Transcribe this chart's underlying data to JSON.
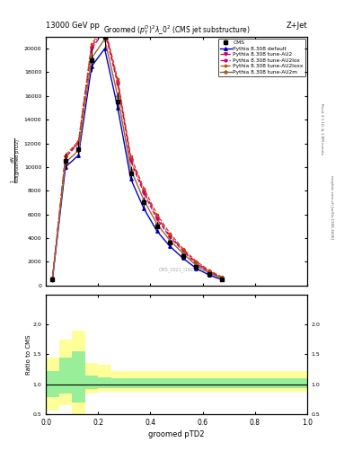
{
  "title": "Groomed $(p_T^D)^2\\lambda\\_0^2$ (CMS jet substructure)",
  "top_left_label": "13000 GeV pp",
  "top_right_label": "Z+Jet",
  "right_label1": "Rivet 3.1.10, ≥ 1.8M events",
  "right_label2": "mcplots.cern.ch [arXiv:1306.3436]",
  "watermark": "CMS_2021_I1925023",
  "xlabel": "groomed pTD2",
  "xlim": [
    0.0,
    1.0
  ],
  "ylim_main": [
    0,
    21000
  ],
  "ylim_ratio": [
    0.5,
    2.5
  ],
  "x_cms": [
    0.025,
    0.075,
    0.125,
    0.175,
    0.225,
    0.275,
    0.325,
    0.375,
    0.425,
    0.475,
    0.525,
    0.575,
    0.625,
    0.675
  ],
  "y_cms": [
    500,
    10500,
    11500,
    19000,
    21000,
    15500,
    9500,
    7000,
    5000,
    3600,
    2500,
    1600,
    950,
    500
  ],
  "cms_err": [
    200,
    700,
    700,
    1000,
    1000,
    800,
    600,
    500,
    380,
    280,
    200,
    130,
    80,
    50
  ],
  "x_pts": [
    0.025,
    0.075,
    0.125,
    0.175,
    0.225,
    0.275,
    0.325,
    0.375,
    0.425,
    0.475,
    0.525,
    0.575,
    0.625,
    0.675
  ],
  "y_default": [
    500,
    10000,
    11000,
    18500,
    20000,
    15000,
    9000,
    6500,
    4600,
    3300,
    2300,
    1450,
    880,
    480
  ],
  "y_au2": [
    550,
    10800,
    12000,
    20000,
    21500,
    17000,
    10500,
    7800,
    5600,
    4100,
    2900,
    1850,
    1150,
    620
  ],
  "y_au2lox": [
    560,
    10900,
    12100,
    20200,
    21700,
    17200,
    10700,
    8000,
    5800,
    4200,
    3000,
    1950,
    1200,
    650
  ],
  "y_au2loxx": [
    570,
    11000,
    12200,
    20400,
    21900,
    17400,
    10900,
    8200,
    6000,
    4400,
    3100,
    2050,
    1280,
    700
  ],
  "y_au2m": [
    520,
    10400,
    11400,
    19200,
    20800,
    16000,
    9800,
    7200,
    5200,
    3800,
    2700,
    1700,
    1050,
    570
  ],
  "color_default": "#0000cc",
  "color_au2": "#cc0066",
  "color_au2lox": "#cc0066",
  "color_au2loxx": "#cc4400",
  "color_au2m": "#996633",
  "bin_edges": [
    0.0,
    0.05,
    0.1,
    0.15,
    0.2,
    0.25,
    0.3,
    0.35,
    0.4,
    0.45,
    0.5,
    0.55,
    0.6,
    0.65,
    0.7,
    1.0
  ],
  "yellow_lo": [
    0.55,
    0.65,
    0.45,
    0.85,
    0.88,
    0.88,
    0.88,
    0.88,
    0.88,
    0.88,
    0.88,
    0.88,
    0.88,
    0.88,
    0.88
  ],
  "yellow_hi": [
    1.45,
    1.75,
    1.9,
    1.35,
    1.32,
    1.22,
    1.22,
    1.22,
    1.22,
    1.22,
    1.22,
    1.22,
    1.22,
    1.22,
    1.22
  ],
  "green_lo": [
    0.78,
    0.85,
    0.7,
    0.92,
    0.93,
    0.93,
    0.93,
    0.93,
    0.93,
    0.93,
    0.93,
    0.93,
    0.93,
    0.93,
    0.93
  ],
  "green_hi": [
    1.22,
    1.45,
    1.55,
    1.15,
    1.12,
    1.1,
    1.1,
    1.1,
    1.1,
    1.1,
    1.1,
    1.1,
    1.1,
    1.1,
    1.1
  ],
  "yticks_main": [
    0,
    2000,
    4000,
    6000,
    8000,
    10000,
    12000,
    14000,
    16000,
    18000,
    20000
  ],
  "yticks_ratio": [
    0.5,
    1.0,
    1.5,
    2.0
  ]
}
